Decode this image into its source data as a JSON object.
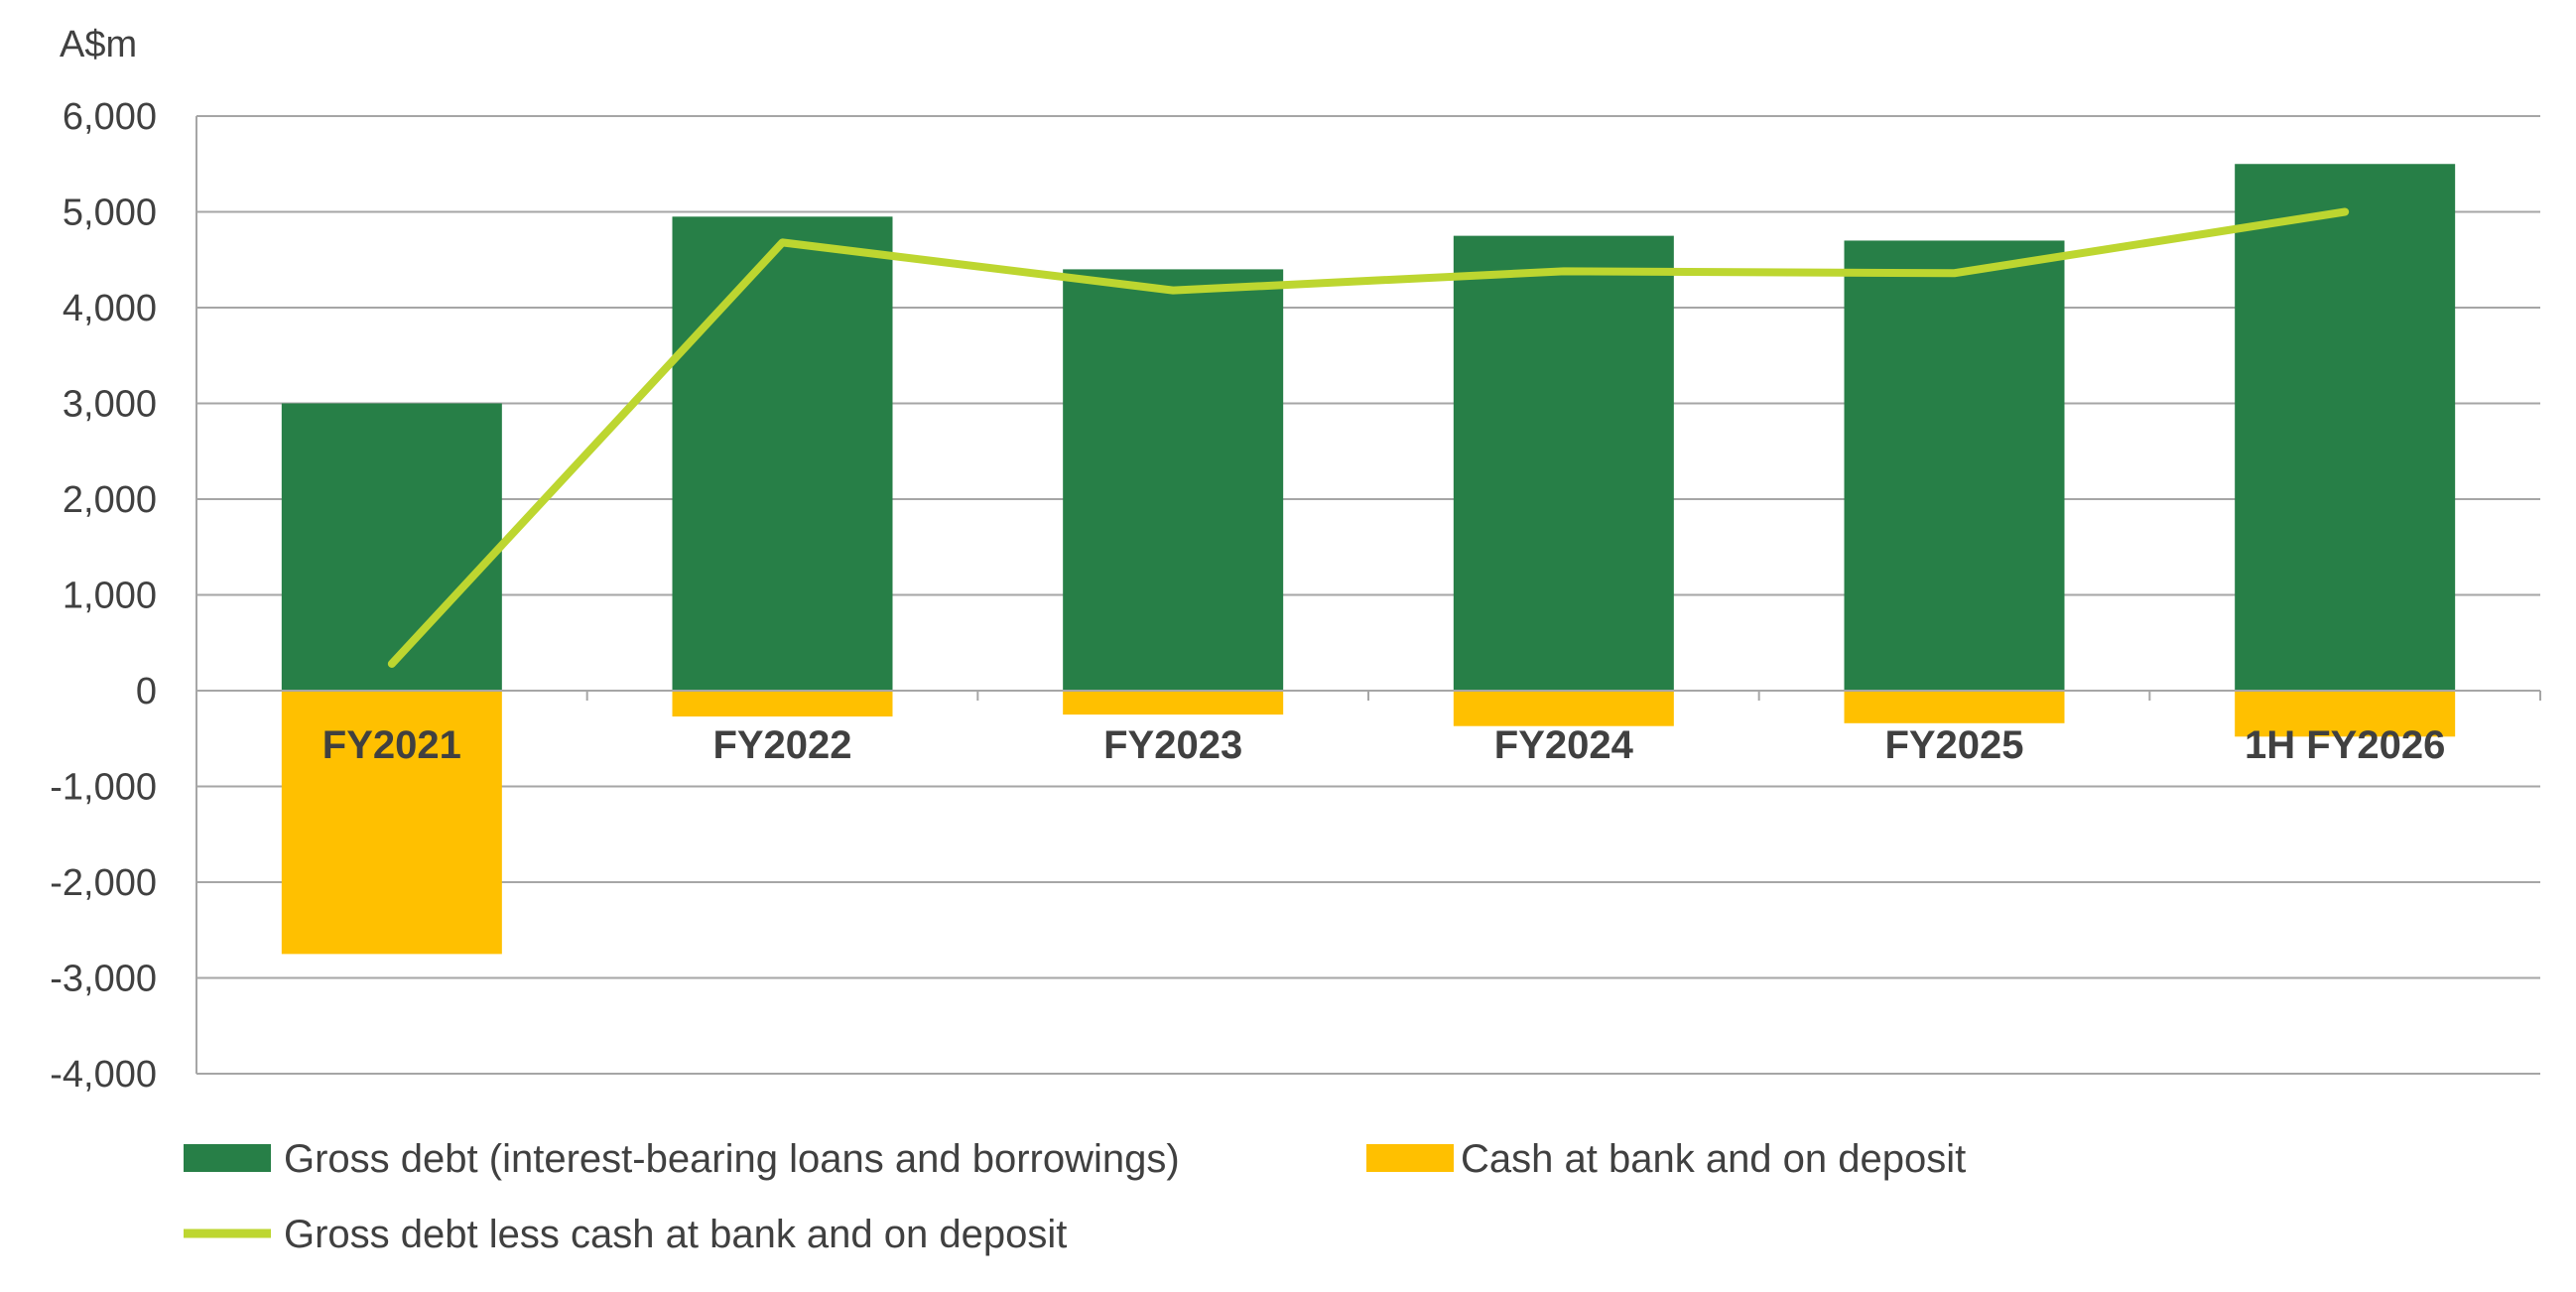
{
  "chart_data": {
    "type": "bar",
    "unit_label": "A$m",
    "categories": [
      "FY2021",
      "FY2022",
      "FY2023",
      "FY2024",
      "FY2025",
      "1H FY2026"
    ],
    "series": [
      {
        "name": "Gross debt (interest-bearing loans and borrowings)",
        "kind": "bar",
        "color": "#277f47",
        "values": [
          3000,
          4950,
          4400,
          4750,
          4700,
          5500
        ]
      },
      {
        "name": "Cash at bank and on deposit",
        "kind": "bar",
        "color": "#ffc000",
        "values": [
          -2750,
          -270,
          -250,
          -370,
          -340,
          -480
        ]
      },
      {
        "name": "Gross debt less cash at bank and on deposit",
        "kind": "line",
        "color": "#bdd630",
        "values": [
          280,
          4680,
          4180,
          4380,
          4360,
          5000
        ]
      }
    ],
    "ylim": [
      -4000,
      6000
    ],
    "yticks": [
      6000,
      5000,
      4000,
      3000,
      2000,
      1000,
      0,
      -1000,
      -2000,
      -3000,
      -4000
    ],
    "ytick_labels": [
      "6,000",
      "5,000",
      "4,000",
      "3,000",
      "2,000",
      "1,000",
      "0",
      "-1,000",
      "-2,000",
      "-3,000",
      "-4,000"
    ],
    "grid": true,
    "legend_position": "bottom"
  }
}
